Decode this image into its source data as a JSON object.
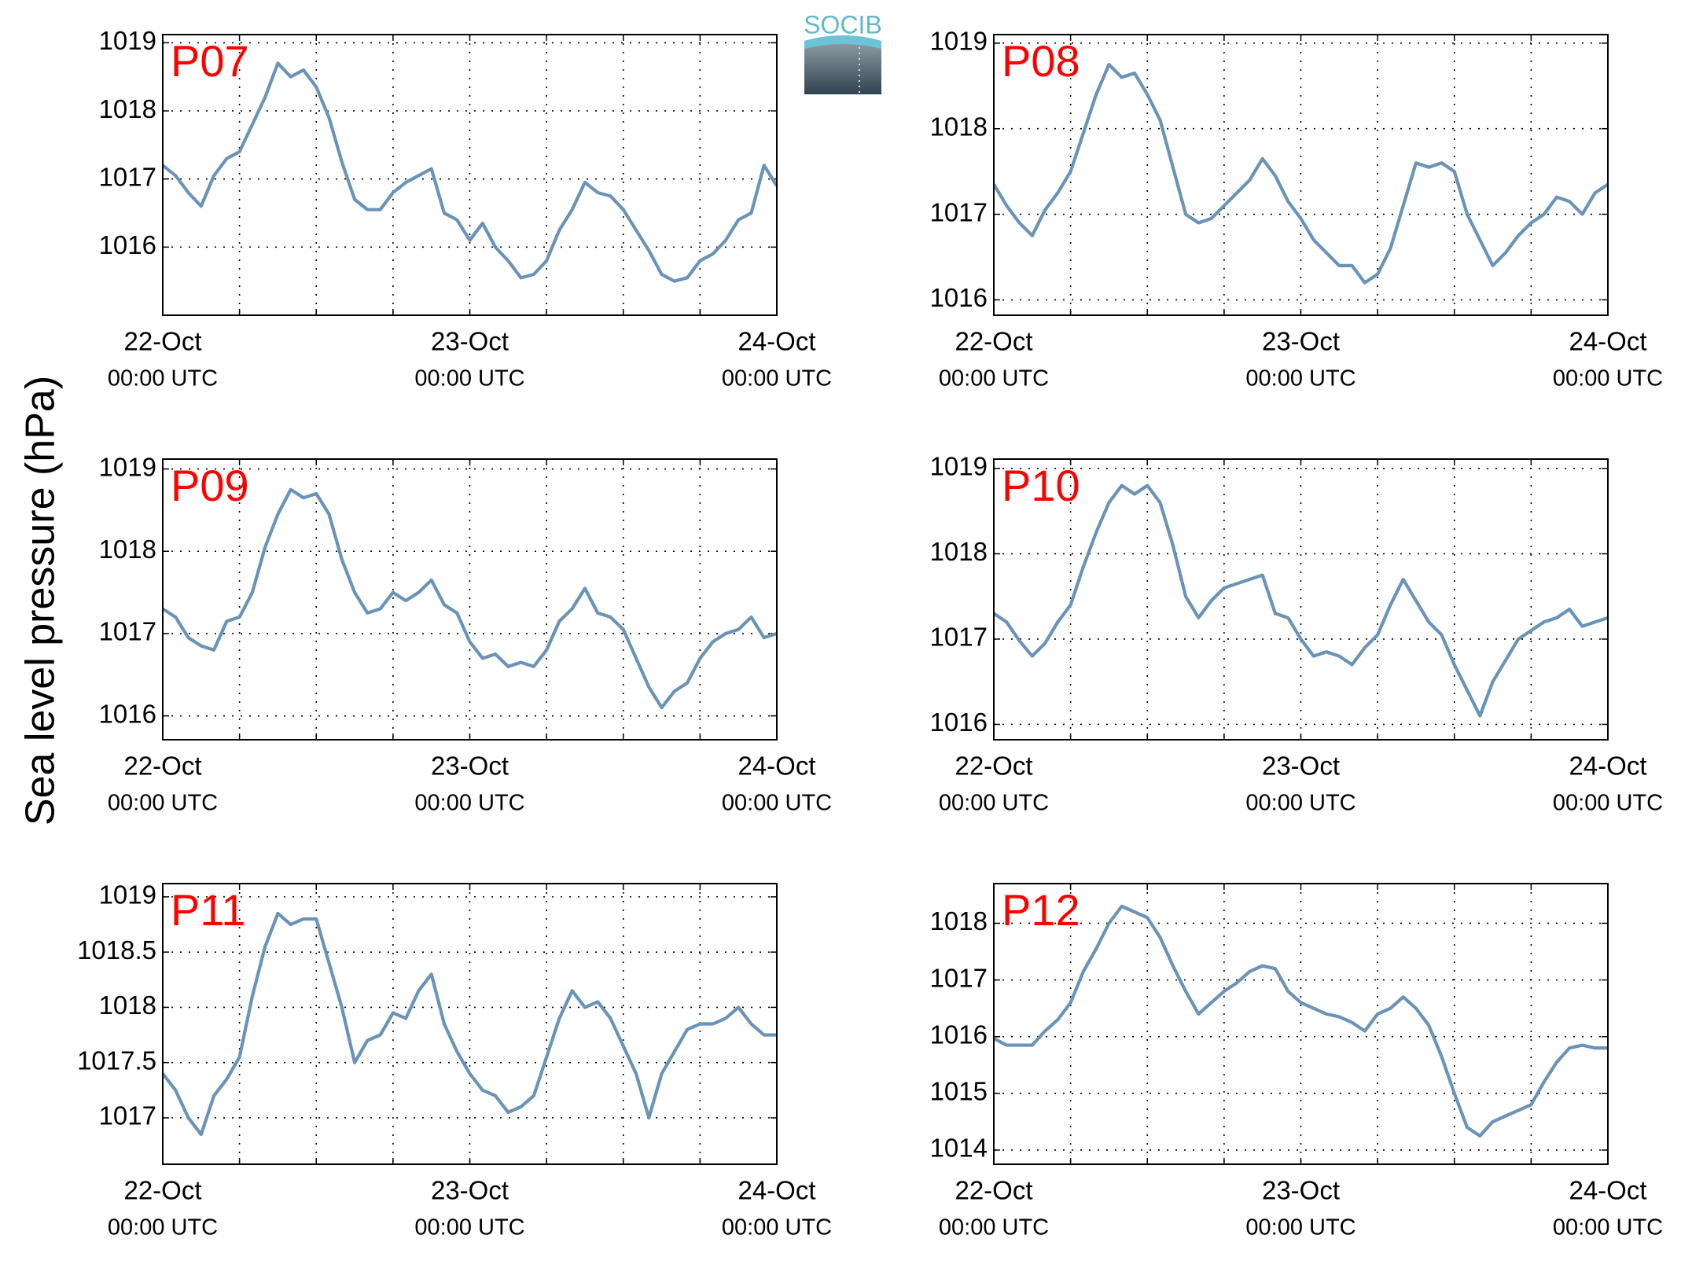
{
  "ylabel": "Sea level pressure (hPa)",
  "logo": "SOCIB",
  "chart_data": [
    {
      "type": "line",
      "title": "P07",
      "title_color": "#ff0000",
      "color": "#6a93b8",
      "grid": true,
      "x": [
        0,
        1,
        2,
        3,
        4,
        5,
        6,
        7,
        8,
        9,
        10,
        11,
        12,
        13,
        14,
        15,
        16,
        17,
        18,
        19,
        20,
        21,
        22,
        23,
        24,
        25,
        26,
        27,
        28,
        29,
        30,
        31,
        32,
        33,
        34,
        35,
        36,
        37,
        38,
        39,
        40,
        41,
        42,
        43,
        44,
        45,
        46,
        47,
        48
      ],
      "values": [
        1017.2,
        1017.05,
        1016.8,
        1016.6,
        1017.05,
        1017.3,
        1017.4,
        1017.8,
        1018.2,
        1018.7,
        1018.5,
        1018.6,
        1018.35,
        1017.9,
        1017.25,
        1016.7,
        1016.55,
        1016.55,
        1016.8,
        1016.95,
        1017.05,
        1017.15,
        1016.5,
        1016.4,
        1016.1,
        1016.35,
        1016.0,
        1015.8,
        1015.55,
        1015.6,
        1015.8,
        1016.25,
        1016.55,
        1016.95,
        1016.8,
        1016.75,
        1016.55,
        1016.25,
        1015.95,
        1015.6,
        1015.5,
        1015.55,
        1015.8,
        1015.9,
        1016.1,
        1016.4,
        1016.5,
        1017.2,
        1016.9
      ],
      "xlim": [
        0,
        48
      ],
      "xticks": [
        {
          "value": 0,
          "label": "22-Oct",
          "sublabel": "00:00 UTC"
        },
        {
          "value": 24,
          "label": "23-Oct",
          "sublabel": "00:00 UTC"
        },
        {
          "value": 48,
          "label": "24-Oct",
          "sublabel": "00:00 UTC"
        }
      ],
      "xminorticks": [
        6,
        12,
        18,
        30,
        36,
        42
      ],
      "ylim": [
        1015,
        1019.12
      ],
      "yticks": [
        1016,
        1017,
        1018,
        1019
      ]
    },
    {
      "type": "line",
      "title": "P08",
      "title_color": "#ff0000",
      "color": "#6a93b8",
      "grid": true,
      "x": [
        0,
        1,
        2,
        3,
        4,
        5,
        6,
        7,
        8,
        9,
        10,
        11,
        12,
        13,
        14,
        15,
        16,
        17,
        18,
        19,
        20,
        21,
        22,
        23,
        24,
        25,
        26,
        27,
        28,
        29,
        30,
        31,
        32,
        33,
        34,
        35,
        36,
        37,
        38,
        39,
        40,
        41,
        42,
        43,
        44,
        45,
        46,
        47,
        48
      ],
      "values": [
        1017.35,
        1017.1,
        1016.9,
        1016.75,
        1017.05,
        1017.25,
        1017.5,
        1017.95,
        1018.4,
        1018.75,
        1018.6,
        1018.65,
        1018.4,
        1018.1,
        1017.55,
        1017.0,
        1016.9,
        1016.95,
        1017.1,
        1017.25,
        1017.4,
        1017.65,
        1017.45,
        1017.15,
        1016.95,
        1016.7,
        1016.55,
        1016.4,
        1016.4,
        1016.2,
        1016.3,
        1016.6,
        1017.1,
        1017.6,
        1017.55,
        1017.6,
        1017.5,
        1017.0,
        1016.7,
        1016.4,
        1016.55,
        1016.75,
        1016.9,
        1017.0,
        1017.2,
        1017.15,
        1017.0,
        1017.25,
        1017.35
      ],
      "xlim": [
        0,
        48
      ],
      "xticks": [
        {
          "value": 0,
          "label": "22-Oct",
          "sublabel": "00:00 UTC"
        },
        {
          "value": 24,
          "label": "23-Oct",
          "sublabel": "00:00 UTC"
        },
        {
          "value": 48,
          "label": "24-Oct",
          "sublabel": "00:00 UTC"
        }
      ],
      "xminorticks": [
        6,
        12,
        18,
        30,
        36,
        42
      ],
      "ylim": [
        1015.82,
        1019.1
      ],
      "yticks": [
        1016,
        1017,
        1018,
        1019
      ]
    },
    {
      "type": "line",
      "title": "P09",
      "title_color": "#ff0000",
      "color": "#6a93b8",
      "grid": true,
      "x": [
        0,
        1,
        2,
        3,
        4,
        5,
        6,
        7,
        8,
        9,
        10,
        11,
        12,
        13,
        14,
        15,
        16,
        17,
        18,
        19,
        20,
        21,
        22,
        23,
        24,
        25,
        26,
        27,
        28,
        29,
        30,
        31,
        32,
        33,
        34,
        35,
        36,
        37,
        38,
        39,
        40,
        41,
        42,
        43,
        44,
        45,
        46,
        47,
        48
      ],
      "values": [
        1017.3,
        1017.2,
        1016.95,
        1016.85,
        1016.8,
        1017.15,
        1017.2,
        1017.5,
        1018.05,
        1018.45,
        1018.75,
        1018.65,
        1018.7,
        1018.45,
        1017.9,
        1017.5,
        1017.25,
        1017.3,
        1017.5,
        1017.4,
        1017.5,
        1017.65,
        1017.35,
        1017.25,
        1016.9,
        1016.7,
        1016.75,
        1016.6,
        1016.65,
        1016.6,
        1016.8,
        1017.15,
        1017.3,
        1017.55,
        1017.25,
        1017.2,
        1017.05,
        1016.7,
        1016.35,
        1016.1,
        1016.3,
        1016.4,
        1016.7,
        1016.9,
        1017.0,
        1017.05,
        1017.2,
        1016.95,
        1017.0
      ],
      "xlim": [
        0,
        48
      ],
      "xticks": [
        {
          "value": 0,
          "label": "22-Oct",
          "sublabel": "00:00 UTC"
        },
        {
          "value": 24,
          "label": "23-Oct",
          "sublabel": "00:00 UTC"
        },
        {
          "value": 48,
          "label": "24-Oct",
          "sublabel": "00:00 UTC"
        }
      ],
      "xminorticks": [
        6,
        12,
        18,
        30,
        36,
        42
      ],
      "ylim": [
        1015.71,
        1019.12
      ],
      "yticks": [
        1016,
        1017,
        1018,
        1019
      ]
    },
    {
      "type": "line",
      "title": "P10",
      "title_color": "#ff0000",
      "color": "#6a93b8",
      "grid": true,
      "x": [
        0,
        1,
        2,
        3,
        4,
        5,
        6,
        7,
        8,
        9,
        10,
        11,
        12,
        13,
        14,
        15,
        16,
        17,
        18,
        19,
        20,
        21,
        22,
        23,
        24,
        25,
        26,
        27,
        28,
        29,
        30,
        31,
        32,
        33,
        34,
        35,
        36,
        37,
        38,
        39,
        40,
        41,
        42,
        43,
        44,
        45,
        46,
        47,
        48
      ],
      "values": [
        1017.3,
        1017.2,
        1016.98,
        1016.8,
        1016.95,
        1017.2,
        1017.4,
        1017.85,
        1018.25,
        1018.6,
        1018.8,
        1018.7,
        1018.8,
        1018.6,
        1018.1,
        1017.5,
        1017.25,
        1017.45,
        1017.6,
        1017.65,
        1017.7,
        1017.75,
        1017.3,
        1017.25,
        1017.0,
        1016.8,
        1016.85,
        1016.8,
        1016.7,
        1016.9,
        1017.05,
        1017.4,
        1017.7,
        1017.45,
        1017.2,
        1017.05,
        1016.7,
        1016.4,
        1016.1,
        1016.5,
        1016.75,
        1017.0,
        1017.1,
        1017.2,
        1017.25,
        1017.35,
        1017.15,
        1017.2,
        1017.25
      ],
      "xlim": [
        0,
        48
      ],
      "xticks": [
        {
          "value": 0,
          "label": "22-Oct",
          "sublabel": "00:00 UTC"
        },
        {
          "value": 24,
          "label": "23-Oct",
          "sublabel": "00:00 UTC"
        },
        {
          "value": 48,
          "label": "24-Oct",
          "sublabel": "00:00 UTC"
        }
      ],
      "xminorticks": [
        6,
        12,
        18,
        30,
        36,
        42
      ],
      "ylim": [
        1015.82,
        1019.11
      ],
      "yticks": [
        1016,
        1017,
        1018,
        1019
      ]
    },
    {
      "type": "line",
      "title": "P11",
      "title_color": "#ff0000",
      "color": "#6a93b8",
      "grid": true,
      "x": [
        0,
        1,
        2,
        3,
        4,
        5,
        6,
        7,
        8,
        9,
        10,
        11,
        12,
        13,
        14,
        15,
        16,
        17,
        18,
        19,
        20,
        21,
        22,
        23,
        24,
        25,
        26,
        27,
        28,
        29,
        30,
        31,
        32,
        33,
        34,
        35,
        36,
        37,
        38,
        39,
        40,
        41,
        42,
        43,
        44,
        45,
        46,
        47,
        48
      ],
      "values": [
        1017.4,
        1017.25,
        1017.0,
        1016.85,
        1017.2,
        1017.35,
        1017.55,
        1018.1,
        1018.55,
        1018.85,
        1018.75,
        1018.8,
        1018.8,
        1018.4,
        1018.0,
        1017.5,
        1017.7,
        1017.75,
        1017.95,
        1017.9,
        1018.15,
        1018.3,
        1017.85,
        1017.6,
        1017.4,
        1017.25,
        1017.2,
        1017.05,
        1017.1,
        1017.2,
        1017.55,
        1017.9,
        1018.15,
        1018.0,
        1018.05,
        1017.9,
        1017.65,
        1017.4,
        1017.0,
        1017.4,
        1017.6,
        1017.8,
        1017.85,
        1017.85,
        1017.9,
        1018.0,
        1017.85,
        1017.75,
        1017.75
      ],
      "xlim": [
        0,
        48
      ],
      "xticks": [
        {
          "value": 0,
          "label": "22-Oct",
          "sublabel": "00:00 UTC"
        },
        {
          "value": 24,
          "label": "23-Oct",
          "sublabel": "00:00 UTC"
        },
        {
          "value": 48,
          "label": "24-Oct",
          "sublabel": "00:00 UTC"
        }
      ],
      "xminorticks": [
        6,
        12,
        18,
        30,
        36,
        42
      ],
      "ylim": [
        1016.58,
        1019.12
      ],
      "yticks": [
        1017,
        1017.5,
        1018,
        1018.5,
        1019
      ]
    },
    {
      "type": "line",
      "title": "P12",
      "title_color": "#ff0000",
      "color": "#6a93b8",
      "grid": true,
      "x": [
        0,
        1,
        2,
        3,
        4,
        5,
        6,
        7,
        8,
        9,
        10,
        11,
        12,
        13,
        14,
        15,
        16,
        17,
        18,
        19,
        20,
        21,
        22,
        23,
        24,
        25,
        26,
        27,
        28,
        29,
        30,
        31,
        32,
        33,
        34,
        35,
        36,
        37,
        38,
        39,
        40,
        41,
        42,
        43,
        44,
        45,
        46,
        47,
        48
      ],
      "values": [
        1015.97,
        1015.85,
        1015.85,
        1015.85,
        1016.1,
        1016.3,
        1016.6,
        1017.15,
        1017.55,
        1018.0,
        1018.3,
        1018.2,
        1018.1,
        1017.75,
        1017.25,
        1016.8,
        1016.4,
        1016.6,
        1016.8,
        1016.95,
        1017.15,
        1017.25,
        1017.2,
        1016.8,
        1016.6,
        1016.5,
        1016.4,
        1016.35,
        1016.25,
        1016.1,
        1016.4,
        1016.5,
        1016.7,
        1016.5,
        1016.2,
        1015.65,
        1015.0,
        1014.4,
        1014.25,
        1014.5,
        1014.6,
        1014.7,
        1014.8,
        1015.2,
        1015.55,
        1015.8,
        1015.85,
        1015.8,
        1015.8
      ],
      "xlim": [
        0,
        48
      ],
      "xticks": [
        {
          "value": 0,
          "label": "22-Oct",
          "sublabel": "00:00 UTC"
        },
        {
          "value": 24,
          "label": "23-Oct",
          "sublabel": "00:00 UTC"
        },
        {
          "value": 48,
          "label": "24-Oct",
          "sublabel": "00:00 UTC"
        }
      ],
      "xminorticks": [
        6,
        12,
        18,
        30,
        36,
        42
      ],
      "ylim": [
        1013.75,
        1018.7
      ],
      "yticks": [
        1014,
        1015,
        1016,
        1017,
        1018
      ]
    }
  ]
}
